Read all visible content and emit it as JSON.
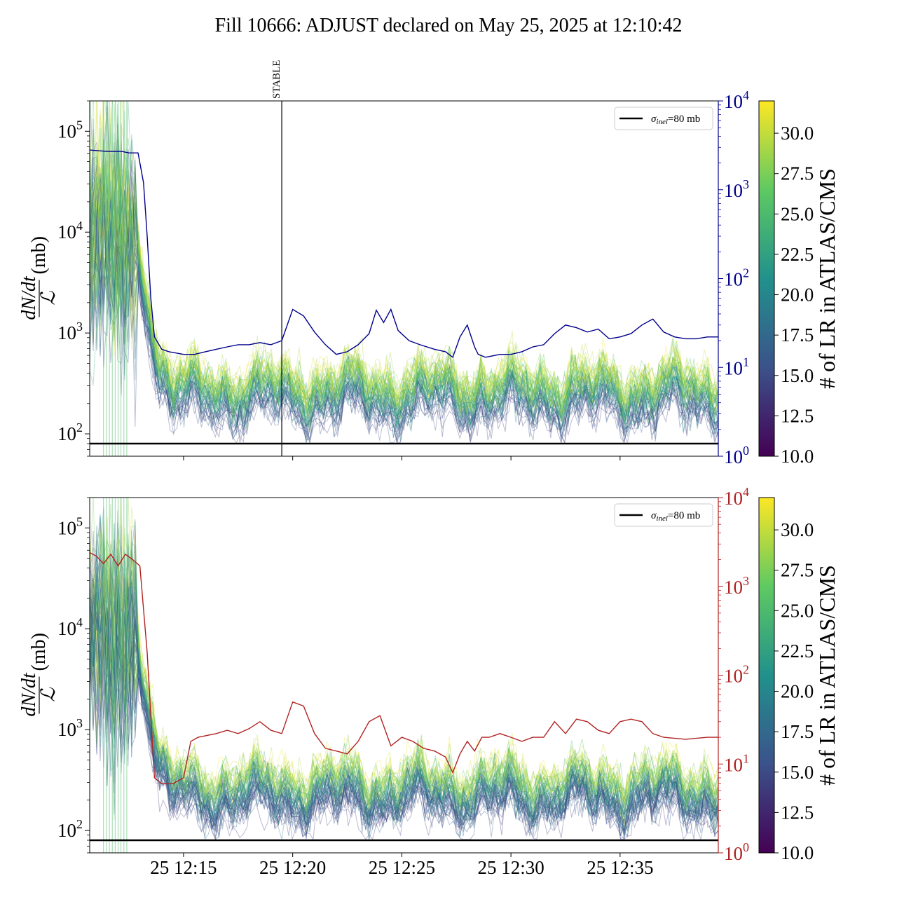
{
  "title": "Fill 10666: ADJUST declared on May 25, 2025 at 12:10:42",
  "colors": {
    "top_secondary": "#00008b",
    "bottom_secondary": "#b22222",
    "reference_line": "#000000",
    "colormap": [
      "#440154",
      "#3b528b",
      "#21918c",
      "#5ec962",
      "#fde725"
    ]
  },
  "chart_data": [
    {
      "type": "line",
      "panel": "top",
      "ylabel_num": "dN/dt",
      "ylabel_den": "ℒ",
      "ylabel_unit": "(mb)",
      "y_scale": "log",
      "ylim": [
        60,
        200000
      ],
      "yticks": [
        {
          "value": 100,
          "base": "10",
          "exp": "2"
        },
        {
          "value": 1000,
          "base": "10",
          "exp": "3"
        },
        {
          "value": 10000,
          "base": "10",
          "exp": "4"
        },
        {
          "value": 100000,
          "base": "10",
          "exp": "5"
        }
      ],
      "xlim": [
        "12:10:42",
        "12:39:30"
      ],
      "xticks": [],
      "reference_line": {
        "value": 80,
        "label": "σinel=80 mb",
        "label_main": "σ",
        "label_sub": "inel",
        "label_rest": "=80 mb"
      },
      "vline": {
        "time": "12:19:30",
        "label": "STABLE"
      },
      "secondary_axis": {
        "y_scale": "log",
        "ylim": [
          1,
          10000
        ],
        "yticks": [
          {
            "value": 1,
            "base": "10",
            "exp": "0"
          },
          {
            "value": 10,
            "base": "10",
            "exp": "1"
          },
          {
            "value": 100,
            "base": "10",
            "exp": "2"
          },
          {
            "value": 1000,
            "base": "10",
            "exp": "3"
          },
          {
            "value": 10000,
            "base": "10",
            "exp": "4"
          }
        ],
        "color": "#00008b",
        "series": {
          "x": [
            "12:10:42",
            "12:11:30",
            "12:12:10",
            "12:12:30",
            "12:12:55",
            "12:13:10",
            "12:13:20",
            "12:13:30",
            "12:13:40",
            "12:14:00",
            "12:14:20",
            "12:15:00",
            "12:15:30",
            "12:16:00",
            "12:16:30",
            "12:17:00",
            "12:17:30",
            "12:18:00",
            "12:18:30",
            "12:19:00",
            "12:19:30",
            "12:20:00",
            "12:20:30",
            "12:21:00",
            "12:21:30",
            "12:22:00",
            "12:22:30",
            "12:23:00",
            "12:23:30",
            "12:23:50",
            "12:24:10",
            "12:24:30",
            "12:24:50",
            "12:25:20",
            "12:25:50",
            "12:26:30",
            "12:27:00",
            "12:27:20",
            "12:27:40",
            "12:28:00",
            "12:28:20",
            "12:28:30",
            "12:28:50",
            "12:29:30",
            "12:30:00",
            "12:30:30",
            "12:31:00",
            "12:31:30",
            "12:32:00",
            "12:32:30",
            "12:33:00",
            "12:33:30",
            "12:34:00",
            "12:34:30",
            "12:35:00",
            "12:35:30",
            "12:36:00",
            "12:36:30",
            "12:37:00",
            "12:37:30",
            "12:38:00",
            "12:38:30",
            "12:39:00",
            "12:39:30"
          ],
          "y": [
            2800,
            2700,
            2700,
            2600,
            2600,
            1200,
            300,
            60,
            22,
            16,
            15,
            14,
            14,
            15,
            16,
            17,
            18,
            18,
            19,
            18,
            20,
            45,
            38,
            25,
            18,
            14,
            15,
            18,
            24,
            44,
            32,
            45,
            26,
            20,
            18,
            16,
            15,
            13,
            22,
            30,
            17,
            14,
            13,
            14,
            14,
            15,
            17,
            18,
            24,
            30,
            28,
            25,
            27,
            21,
            22,
            24,
            30,
            35,
            25,
            22,
            21,
            21,
            22,
            22
          ]
        }
      },
      "colorbar": {
        "label": "# of LR in ATLAS/CMS",
        "range": [
          10,
          32
        ],
        "ticks": [
          "10.0",
          "12.5",
          "15.0",
          "17.5",
          "20.0",
          "22.5",
          "25.0",
          "27.5",
          "30.0"
        ]
      }
    },
    {
      "type": "line",
      "panel": "bottom",
      "ylabel_num": "dN/dt",
      "ylabel_den": "ℒ",
      "ylabel_unit": "(mb)",
      "y_scale": "log",
      "ylim": [
        60,
        200000
      ],
      "yticks": [
        {
          "value": 100,
          "base": "10",
          "exp": "2"
        },
        {
          "value": 1000,
          "base": "10",
          "exp": "3"
        },
        {
          "value": 10000,
          "base": "10",
          "exp": "4"
        },
        {
          "value": 100000,
          "base": "10",
          "exp": "5"
        }
      ],
      "xlim": [
        "12:10:42",
        "12:39:30"
      ],
      "xticks": [
        {
          "time": "12:15:00",
          "label": "25 12:15"
        },
        {
          "time": "12:20:00",
          "label": "25 12:20"
        },
        {
          "time": "12:25:00",
          "label": "25 12:25"
        },
        {
          "time": "12:30:00",
          "label": "25 12:30"
        },
        {
          "time": "12:35:00",
          "label": "25 12:35"
        }
      ],
      "reference_line": {
        "value": 80,
        "label": "σinel=80 mb",
        "label_main": "σ",
        "label_sub": "inel",
        "label_rest": "=80 mb"
      },
      "secondary_axis": {
        "y_scale": "log",
        "ylim": [
          1,
          10000
        ],
        "yticks": [
          {
            "value": 1,
            "base": "10",
            "exp": "0"
          },
          {
            "value": 10,
            "base": "10",
            "exp": "1"
          },
          {
            "value": 100,
            "base": "10",
            "exp": "2"
          },
          {
            "value": 1000,
            "base": "10",
            "exp": "3"
          },
          {
            "value": 10000,
            "base": "10",
            "exp": "4"
          }
        ],
        "color": "#b22222",
        "series": {
          "x": [
            "12:10:42",
            "12:11:00",
            "12:11:20",
            "12:11:40",
            "12:12:00",
            "12:12:20",
            "12:12:40",
            "12:13:00",
            "12:13:20",
            "12:13:40",
            "12:14:00",
            "12:14:30",
            "12:15:00",
            "12:15:20",
            "12:15:40",
            "12:16:30",
            "12:17:00",
            "12:17:30",
            "12:18:00",
            "12:18:30",
            "12:19:00",
            "12:19:30",
            "12:20:00",
            "12:20:30",
            "12:21:00",
            "12:21:30",
            "12:22:00",
            "12:22:30",
            "12:23:00",
            "12:23:30",
            "12:24:00",
            "12:24:30",
            "12:25:00",
            "12:25:30",
            "12:26:00",
            "12:26:30",
            "12:27:00",
            "12:27:20",
            "12:27:40",
            "12:28:00",
            "12:28:20",
            "12:28:40",
            "12:29:00",
            "12:29:30",
            "12:30:00",
            "12:30:30",
            "12:31:00",
            "12:31:30",
            "12:32:00",
            "12:32:30",
            "12:33:00",
            "12:33:30",
            "12:34:00",
            "12:34:30",
            "12:35:00",
            "12:35:30",
            "12:36:00",
            "12:36:30",
            "12:37:00",
            "12:38:00",
            "12:39:00",
            "12:39:30"
          ],
          "y": [
            2400,
            2200,
            1800,
            2300,
            1700,
            2300,
            2000,
            1700,
            180,
            7,
            6,
            6,
            7,
            18,
            20,
            22,
            24,
            22,
            25,
            30,
            24,
            22,
            50,
            45,
            22,
            15,
            14,
            13,
            18,
            30,
            35,
            16,
            20,
            18,
            15,
            14,
            12,
            8,
            13,
            18,
            14,
            20,
            20,
            22,
            20,
            18,
            20,
            20,
            30,
            22,
            32,
            30,
            24,
            22,
            30,
            32,
            30,
            22,
            20,
            19,
            20,
            20
          ]
        }
      },
      "colorbar": {
        "label": "# of LR in ATLAS/CMS",
        "range": [
          10,
          32
        ],
        "ticks": [
          "10.0",
          "12.5",
          "15.0",
          "17.5",
          "20.0",
          "22.5",
          "25.0",
          "27.5",
          "30.0"
        ]
      }
    }
  ]
}
